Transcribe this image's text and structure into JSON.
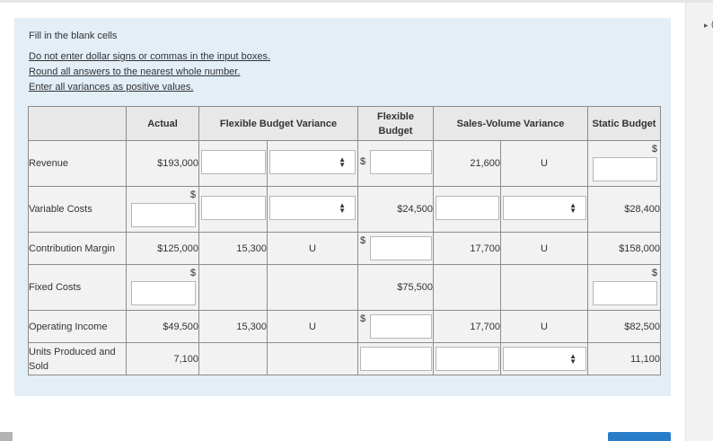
{
  "instructions": {
    "lead": "Fill in the blank cells",
    "rules": [
      "Do not enter dollar signs or commas in the input boxes.",
      "Round all answers to the nearest whole number.",
      "Enter all variances as positive values."
    ]
  },
  "table": {
    "headers": {
      "actual": "Actual",
      "fbv": "Flexible Budget Variance",
      "flexible": "Flexible Budget",
      "svv": "Sales-Volume Variance",
      "static": "Static Budget"
    },
    "rows": {
      "revenue": {
        "label": "Revenue",
        "actual": "$193,000",
        "fbv_dollar": "$",
        "svv": "21,600",
        "svv_type": "U",
        "static_dollar": "$"
      },
      "variable": {
        "label": "Variable Costs",
        "actual_dollar": "$",
        "flexible": "$24,500",
        "static": "$28,400"
      },
      "contribution": {
        "label": "Contribution Margin",
        "actual": "$125,000",
        "fbv": "15,300",
        "fbv_type": "U",
        "flexible_dollar": "$",
        "svv": "17,700",
        "svv_type": "U",
        "static": "$158,000"
      },
      "fixed": {
        "label": "Fixed Costs",
        "actual_dollar": "$",
        "flexible": "$75,500",
        "static_dollar": "$"
      },
      "operating": {
        "label": "Operating Income",
        "actual": "$49,500",
        "fbv": "15,300",
        "fbv_type": "U",
        "flexible_dollar": "$",
        "svv": "17,700",
        "svv_type": "U",
        "static": "$82,500"
      },
      "units": {
        "label": "Units Produced and Sold",
        "actual": "7,100",
        "static": "11,100"
      }
    }
  },
  "icons": {
    "select_arrows": "up-down-caret-icon",
    "rail_arrow": "play-triangle-icon"
  },
  "rail": {
    "arrow": "▸",
    "paren": "("
  },
  "colors": {
    "panel": "#e3eef7",
    "cell_bg": "#f2f2f2",
    "header_bg": "#e8e8e8",
    "button": "#2a7dc9"
  }
}
